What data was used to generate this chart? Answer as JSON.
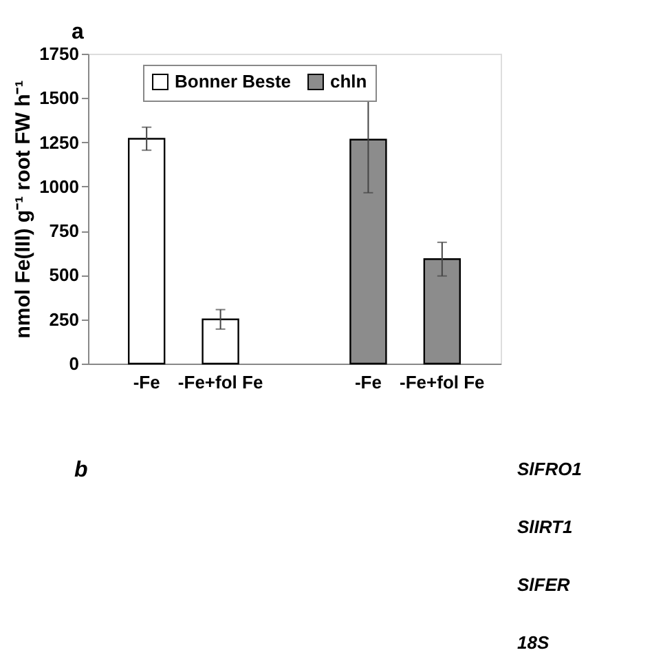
{
  "chart_data": {
    "type": "bar",
    "ylabel": "nmol Fe(III) g⁻¹ root FW h⁻¹",
    "categories": [
      "-Fe",
      "-Fe+fol Fe",
      "-Fe",
      "-Fe+fol Fe"
    ],
    "series": [
      {
        "name": "Bonner Beste",
        "color": "#ffffff",
        "values": [
          1270,
          250,
          null,
          null
        ],
        "errors": [
          65,
          55,
          null,
          null
        ]
      },
      {
        "name": "chln",
        "color": "#8c8c8c",
        "values": [
          null,
          null,
          1265,
          590
        ],
        "errors": [
          null,
          null,
          300,
          95
        ]
      }
    ],
    "ylim": [
      0,
      1750
    ],
    "yticks": [
      0,
      250,
      500,
      750,
      1000,
      1250,
      1500,
      1750
    ],
    "grid": false,
    "legend": "top left",
    "annotations": [
      "a",
      "b",
      "SlFRO1",
      "SlIRT1",
      "SlFER",
      "18S"
    ]
  }
}
